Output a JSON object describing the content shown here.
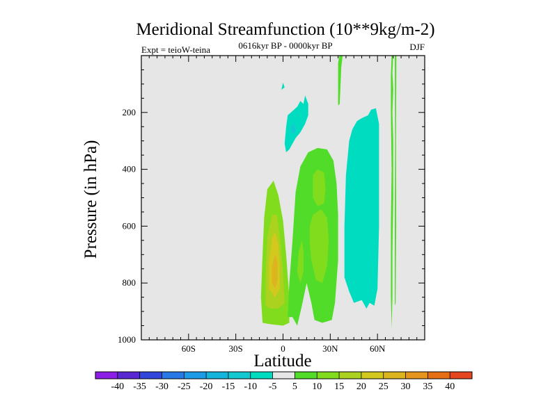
{
  "chart_data": {
    "type": "contour",
    "title": "Meridional Streamfunction (10**9kg/m-2)",
    "left_string": "Expt = teioW-teina",
    "center_string": "0616kyr BP - 0000kyr BP",
    "right_string": "DJF",
    "xlabel": "Latitude",
    "ylabel": "Pressure (in hPa)",
    "xlim": [
      -90,
      90
    ],
    "ylim": [
      1000,
      0
    ],
    "x_ticks": [
      {
        "value": -60,
        "label": "60S"
      },
      {
        "value": -30,
        "label": "30S"
      },
      {
        "value": 0,
        "label": "0"
      },
      {
        "value": 30,
        "label": "30N"
      },
      {
        "value": 60,
        "label": "60N"
      }
    ],
    "y_ticks": [
      {
        "value": 200,
        "label": "200"
      },
      {
        "value": 400,
        "label": "400"
      },
      {
        "value": 600,
        "label": "600"
      },
      {
        "value": 800,
        "label": "800"
      },
      {
        "value": 1000,
        "label": "1000"
      }
    ],
    "background_color": "#e6e6e6",
    "colorbar": {
      "levels": [
        "-40",
        "-35",
        "-30",
        "-25",
        "-20",
        "-15",
        "-10",
        "-5",
        "5",
        "10",
        "15",
        "20",
        "25",
        "30",
        "35",
        "40"
      ],
      "colors": [
        "#8c1ee6",
        "#5a28d2",
        "#3246dc",
        "#2878e6",
        "#1e9be6",
        "#14b4dc",
        "#14c8d2",
        "#00dcc0",
        "#e6e6e6",
        "#50dc28",
        "#82dc1e",
        "#aad21e",
        "#d2c81e",
        "#dcb41e",
        "#e6961e",
        "#e66e14",
        "#e6461e"
      ]
    },
    "regions": [
      {
        "level": 10,
        "color": "#82dc1e",
        "points": [
          [
            -13,
            940
          ],
          [
            -14,
            850
          ],
          [
            -13,
            700
          ],
          [
            -12,
            570
          ],
          [
            -10,
            470
          ],
          [
            -6,
            440
          ],
          [
            -3,
            490
          ],
          [
            0,
            580
          ],
          [
            2,
            700
          ],
          [
            4,
            850
          ],
          [
            4,
            940
          ],
          [
            0,
            950
          ],
          [
            -8,
            945
          ]
        ]
      },
      {
        "level": 15,
        "color": "#aad21e",
        "points": [
          [
            -11,
            880
          ],
          [
            -11,
            760
          ],
          [
            -10,
            640
          ],
          [
            -7,
            560
          ],
          [
            -4,
            560
          ],
          [
            -2,
            640
          ],
          [
            0,
            760
          ],
          [
            1,
            870
          ],
          [
            -3,
            890
          ],
          [
            -8,
            890
          ]
        ]
      },
      {
        "level": 20,
        "color": "#d2c81e",
        "points": [
          [
            -9,
            820
          ],
          [
            -9,
            730
          ],
          [
            -7,
            640
          ],
          [
            -5,
            620
          ],
          [
            -3,
            660
          ],
          [
            -2,
            740
          ],
          [
            -2,
            820
          ],
          [
            -5,
            850
          ]
        ]
      },
      {
        "level": 25,
        "color": "#dcb41e",
        "points": [
          [
            -7,
            800
          ],
          [
            -7,
            740
          ],
          [
            -5,
            700
          ],
          [
            -3.5,
            730
          ],
          [
            -3.5,
            790
          ],
          [
            -5,
            820
          ]
        ]
      },
      {
        "level": 10,
        "color": "#50dc28",
        "points": [
          [
            3,
            920
          ],
          [
            4,
            800
          ],
          [
            6,
            650
          ],
          [
            8,
            480
          ],
          [
            11,
            390
          ],
          [
            16,
            340
          ],
          [
            22,
            325
          ],
          [
            28,
            330
          ],
          [
            32,
            370
          ],
          [
            34,
            450
          ],
          [
            35,
            560
          ],
          [
            35,
            720
          ],
          [
            33,
            870
          ],
          [
            31,
            930
          ],
          [
            25,
            940
          ],
          [
            20,
            930
          ],
          [
            18,
            870
          ],
          [
            15,
            800
          ],
          [
            12,
            880
          ],
          [
            9,
            950
          ],
          [
            6,
            920
          ]
        ]
      },
      {
        "level": 15,
        "color": "#82dc1e",
        "points": [
          [
            19,
            420
          ],
          [
            22,
            400
          ],
          [
            26,
            410
          ],
          [
            27,
            470
          ],
          [
            26,
            520
          ],
          [
            22,
            530
          ],
          [
            19,
            500
          ]
        ]
      },
      {
        "level": 15,
        "color": "#82dc1e",
        "points": [
          [
            17,
            600
          ],
          [
            19,
            560
          ],
          [
            24,
            540
          ],
          [
            28,
            570
          ],
          [
            29,
            650
          ],
          [
            28,
            740
          ],
          [
            25,
            800
          ],
          [
            21,
            790
          ],
          [
            18,
            720
          ],
          [
            17,
            660
          ]
        ]
      },
      {
        "level": 15,
        "color": "#82dc1e",
        "points": [
          [
            9,
            760
          ],
          [
            10,
            690
          ],
          [
            12,
            650
          ],
          [
            13,
            690
          ],
          [
            13,
            760
          ],
          [
            11,
            800
          ]
        ]
      },
      {
        "level": -5,
        "color": "#00dcc0",
        "points": [
          [
            1,
            310
          ],
          [
            2,
            250
          ],
          [
            3,
            210
          ],
          [
            6,
            195
          ],
          [
            9,
            180
          ],
          [
            11,
            160
          ],
          [
            13,
            170
          ],
          [
            14,
            140
          ],
          [
            16,
            170
          ],
          [
            16,
            210
          ],
          [
            14,
            240
          ],
          [
            11,
            270
          ],
          [
            8,
            290
          ],
          [
            4,
            330
          ],
          [
            2,
            340
          ]
        ]
      },
      {
        "level": -10,
        "color": "#14c8d2",
        "points": [
          [
            5,
            250
          ],
          [
            7,
            240
          ],
          [
            8,
            265
          ],
          [
            6,
            280
          ]
        ]
      },
      {
        "level": -5,
        "color": "#00dcc0",
        "points": [
          [
            -1,
            120
          ],
          [
            0,
            95
          ],
          [
            1,
            112
          ]
        ]
      },
      {
        "level": -5,
        "color": "#00dcc0",
        "points": [
          [
            39,
            780
          ],
          [
            39,
            600
          ],
          [
            40,
            420
          ],
          [
            42,
            300
          ],
          [
            44,
            260
          ],
          [
            47,
            230
          ],
          [
            50,
            220
          ],
          [
            54,
            210
          ],
          [
            56,
            190
          ],
          [
            59,
            185
          ],
          [
            61,
            240
          ],
          [
            61,
            420
          ],
          [
            61,
            600
          ],
          [
            60,
            820
          ],
          [
            58,
            880
          ],
          [
            55,
            870
          ],
          [
            53,
            890
          ],
          [
            50,
            860
          ],
          [
            45,
            870
          ],
          [
            42,
            830
          ]
        ]
      },
      {
        "level": 5,
        "color": "#50dc28",
        "points": [
          [
            35,
            25
          ],
          [
            36,
            -5
          ],
          [
            38,
            -5
          ],
          [
            37,
            40
          ],
          [
            36,
            170
          ],
          [
            35,
            175
          ],
          [
            35,
            100
          ]
        ]
      },
      {
        "level": 5,
        "color": "#50dc28",
        "points": [
          [
            69,
            0
          ],
          [
            70,
            0
          ],
          [
            69.5,
            60
          ],
          [
            70,
            120
          ],
          [
            69.5,
            200
          ],
          [
            70,
            300
          ],
          [
            70,
            500
          ],
          [
            69.5,
            700
          ],
          [
            69.5,
            850
          ],
          [
            69,
            960
          ],
          [
            68.5,
            850
          ],
          [
            68.5,
            600
          ],
          [
            69,
            400
          ],
          [
            68.5,
            200
          ],
          [
            68.5,
            70
          ]
        ]
      },
      {
        "level": 5,
        "color": "#50dc28",
        "points": [
          [
            71,
            0
          ],
          [
            72,
            0
          ],
          [
            71.8,
            300
          ],
          [
            71.9,
            600
          ],
          [
            71.5,
            870
          ],
          [
            71,
            880
          ],
          [
            71,
            600
          ],
          [
            71.2,
            300
          ]
        ]
      }
    ]
  }
}
